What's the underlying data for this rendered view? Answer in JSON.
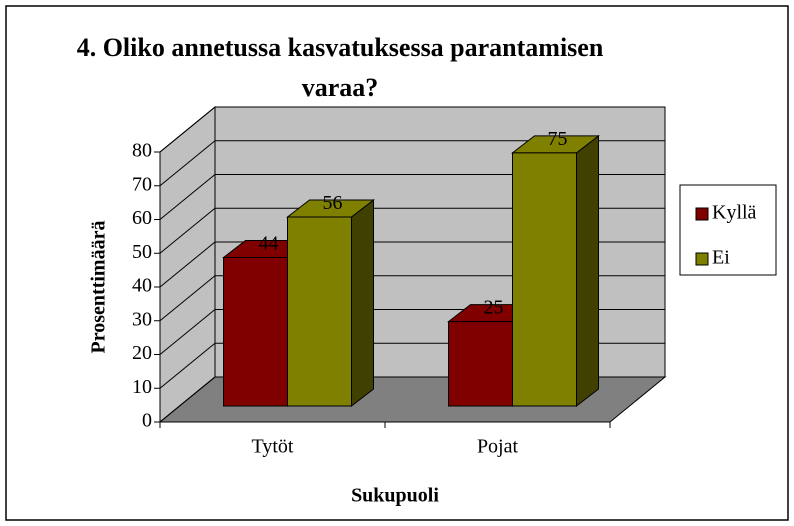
{
  "chart_data": {
    "type": "bar3d",
    "title": "4. Oliko annetussa kasvatuksessa parantamisen varaa?",
    "xlabel": "Sukupuoli",
    "ylabel": "Prosenttimäärä",
    "categories": [
      "Tytöt",
      "Pojat"
    ],
    "series": [
      {
        "name": "Kyllä",
        "color": "#800000",
        "values": [
          44,
          25
        ]
      },
      {
        "name": "Ei",
        "color": "#808000",
        "values": [
          56,
          75
        ]
      }
    ],
    "ylim": [
      0,
      80
    ],
    "yticks": [
      0,
      10,
      20,
      30,
      40,
      50,
      60,
      70,
      80
    ],
    "grid": true,
    "legend": "right"
  }
}
